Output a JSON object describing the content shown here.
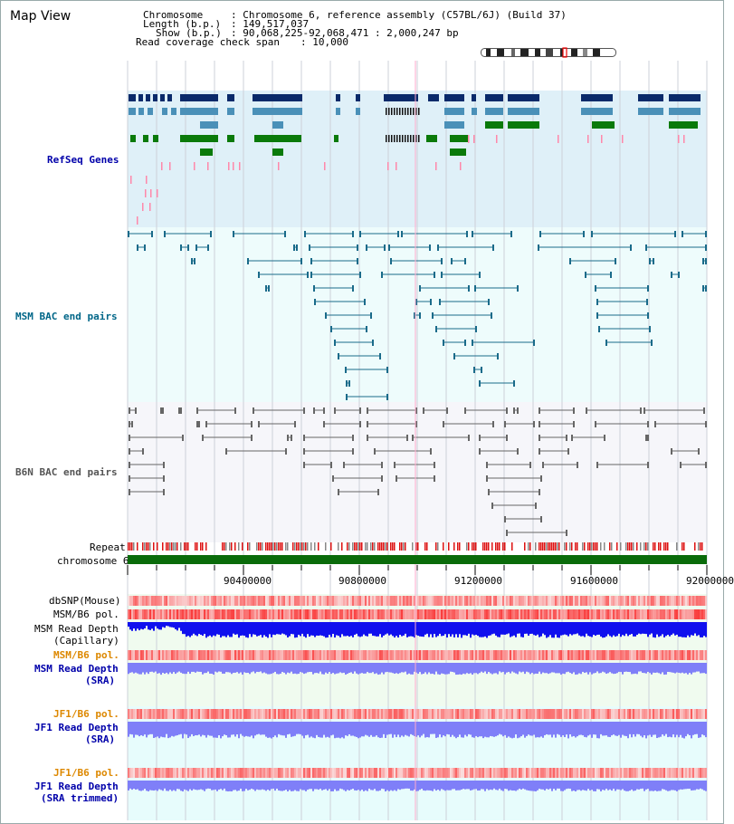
{
  "title": "Map View",
  "info": {
    "chromosome_key": "Chromosome",
    "chromosome_val": ": Chromosome 6, reference assembly (C57BL/6J) (Build 37)",
    "length_key": "Length (b.p.)",
    "length_val": ": 149,517,037",
    "show_key": "Show (b.p.)",
    "show_val": ": 90,068,225-92,068,471 : 2,000,247 bp",
    "span_key": "Read coverage check span",
    "span_val": ": 10,000"
  },
  "tracks": {
    "refseq": "RefSeq Genes",
    "msm_bac": "MSM BAC end pairs",
    "b6n_bac": "B6N BAC end pairs",
    "repeat": "Repeat",
    "chromosome": "chromosome 6",
    "dbsnp": "dbSNP(Mouse)",
    "msm_b6_pol_1": "MSM/B6 pol.",
    "msm_read_depth_cap_1": "MSM Read Depth",
    "msm_read_depth_cap_2": "(Capillary)",
    "msm_b6_pol_2": "MSM/B6 pol.",
    "msm_read_depth_sra_1": "MSM Read Depth",
    "msm_read_depth_sra_2": "(SRA)",
    "jf1_b6_pol_1": "JF1/B6 pol.",
    "jf1_read_depth_sra_1": "JF1 Read Depth",
    "jf1_read_depth_sra_2": "(SRA)",
    "jf1_b6_pol_2": "JF1/B6 pol.",
    "jf1_read_depth_trim_1": "JF1 Read Depth",
    "jf1_read_depth_trim_2": "(SRA trimmed)"
  },
  "axis": {
    "ticks": [
      "90400000",
      "90800000",
      "91200000",
      "91600000",
      "92000000"
    ]
  },
  "colors": {
    "refseq_label": "#0000aa",
    "msm_label": "#006688",
    "b6n_label": "#555555",
    "orange_label": "#dd8800",
    "blue_label": "#0000aa",
    "dark_gene": "#0a2a6a",
    "mid_gene": "#4a90b8",
    "green_gene": "#0a7a0a",
    "pink": "#ff88aa",
    "repeat_red": "#dd1111",
    "depth_blue": "#1010ee",
    "depth_light": "#7f7ff8"
  }
}
